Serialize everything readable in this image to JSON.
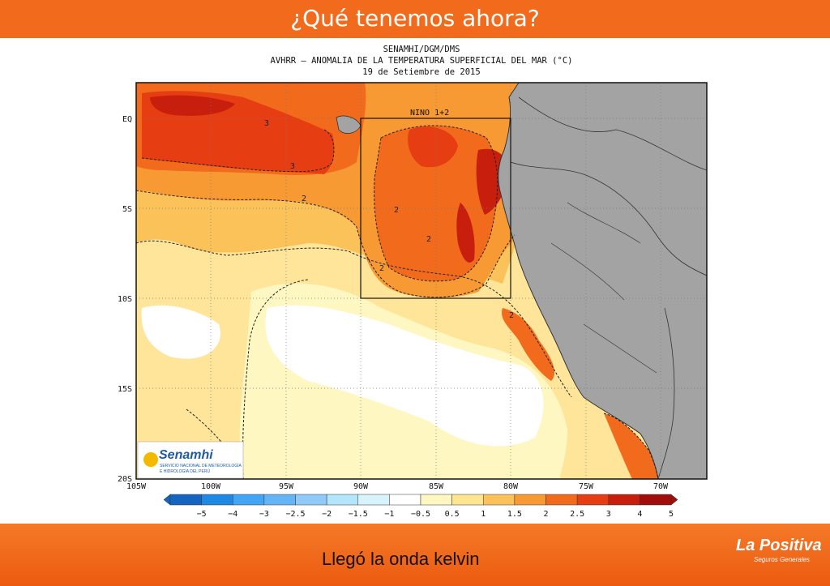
{
  "slide": {
    "title": "¿Qué tenemos ahora?",
    "footer_text": "Llegó la onda kelvin",
    "brand_name": "La Positiva",
    "brand_subtitle": "Seguros Generales"
  },
  "map": {
    "header_line1": "SENAMHI/DGM/DMS",
    "header_line2": "AVHRR – ANOMALIA DE LA TEMPERATURA SUPERFICIAL DEL MAR (°C)",
    "header_line3": "19 de Setiembre de 2015",
    "box_label": "NINO 1+2",
    "lat_labels": [
      "EQ",
      "5S",
      "10S",
      "15S",
      "20S"
    ],
    "lon_labels": [
      "105W",
      "100W",
      "95W",
      "90W",
      "85W",
      "80W",
      "75W",
      "70W"
    ],
    "contour_labels": [
      "3",
      "3",
      "2",
      "2",
      "2",
      "2",
      "2"
    ],
    "logo": {
      "name": "Senamhi",
      "line1": "SERVICIO NACIONAL DE METEOROLOGÍA",
      "line2": "E HIDROLOGÍA DEL PERÚ"
    },
    "colorbar": {
      "labels": [
        "−5",
        "−4",
        "−3",
        "−2.5",
        "−2",
        "−1.5",
        "−1",
        "−0.5",
        "0.5",
        "1",
        "1.5",
        "2",
        "2.5",
        "3",
        "4",
        "5"
      ],
      "colors": [
        "#1565c0",
        "#1e88e5",
        "#42a5f5",
        "#64b5f6",
        "#90caf9",
        "#b3e5fc",
        "#d8f3fc",
        "#ffffff",
        "#fff7c2",
        "#ffe58f",
        "#fcc25a",
        "#f89a34",
        "#f26b1d",
        "#e63d12",
        "#c81e0e",
        "#a10d0b"
      ]
    },
    "colors": {
      "land": "#a3a3a3",
      "ocean_high": "#d42b12",
      "ocean_mid": "#f47a28",
      "ocean_low": "#ffe59a"
    }
  }
}
